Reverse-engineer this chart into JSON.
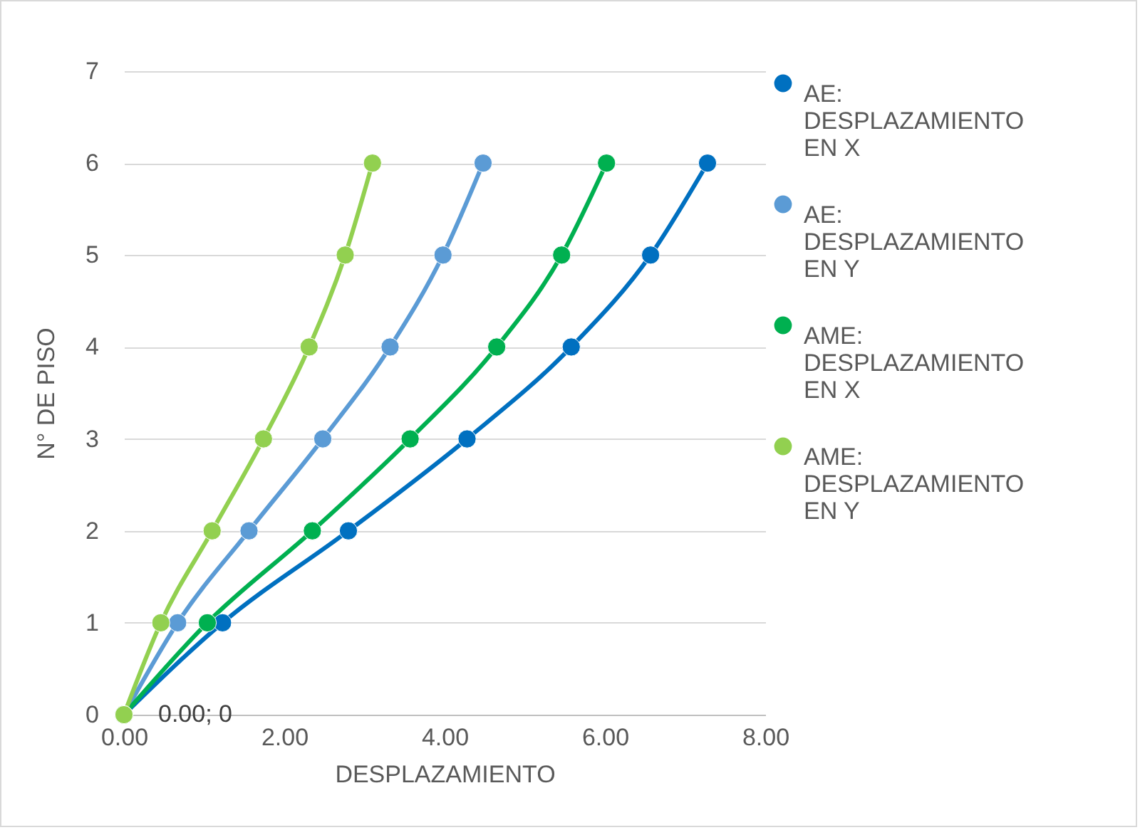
{
  "chart_data": {
    "type": "line",
    "xlabel": "DESPLAZAMIENTO",
    "ylabel": "N° DE PISO",
    "series": [
      {
        "name": "AE: DESPLAZAMIENTO EN X",
        "color": "#0070c0",
        "x": [
          0,
          1.23,
          2.8,
          4.28,
          5.58,
          6.57,
          7.28
        ],
        "values": [
          0,
          1,
          2,
          3,
          4,
          5,
          6
        ]
      },
      {
        "name": "AE: DESPLAZAMIENTO EN Y",
        "color": "#5b9bd5",
        "x": [
          0,
          0.67,
          1.56,
          2.48,
          3.32,
          3.98,
          4.48
        ],
        "values": [
          0,
          1,
          2,
          3,
          4,
          5,
          6
        ]
      },
      {
        "name": "AME: DESPLAZAMIENTO EN X",
        "color": "#00b050",
        "x": [
          0,
          1.04,
          2.35,
          3.57,
          4.65,
          5.46,
          6.02
        ],
        "values": [
          0,
          1,
          2,
          3,
          4,
          5,
          6
        ]
      },
      {
        "name": "AME: DESPLAZAMIENTO EN Y",
        "color": "#92d050",
        "x": [
          0,
          0.46,
          1.1,
          1.74,
          2.31,
          2.76,
          3.1
        ],
        "values": [
          0,
          1,
          2,
          3,
          4,
          5,
          6
        ]
      }
    ],
    "xlim": [
      0,
      8
    ],
    "xticks": [
      {
        "value": 0,
        "label": "0.00"
      },
      {
        "value": 2,
        "label": "2.00"
      },
      {
        "value": 4,
        "label": "4.00"
      },
      {
        "value": 6,
        "label": "6.00"
      },
      {
        "value": 8,
        "label": "8.00"
      }
    ],
    "ylim": [
      0,
      7
    ],
    "yticks": [
      0,
      1,
      2,
      3,
      4,
      5,
      6,
      7
    ],
    "annotations": [
      {
        "text": "0.00; 0",
        "x": 0,
        "y": 0
      }
    ],
    "grid": "y",
    "legend": "right",
    "marker": "circle",
    "line_style": "solid"
  }
}
